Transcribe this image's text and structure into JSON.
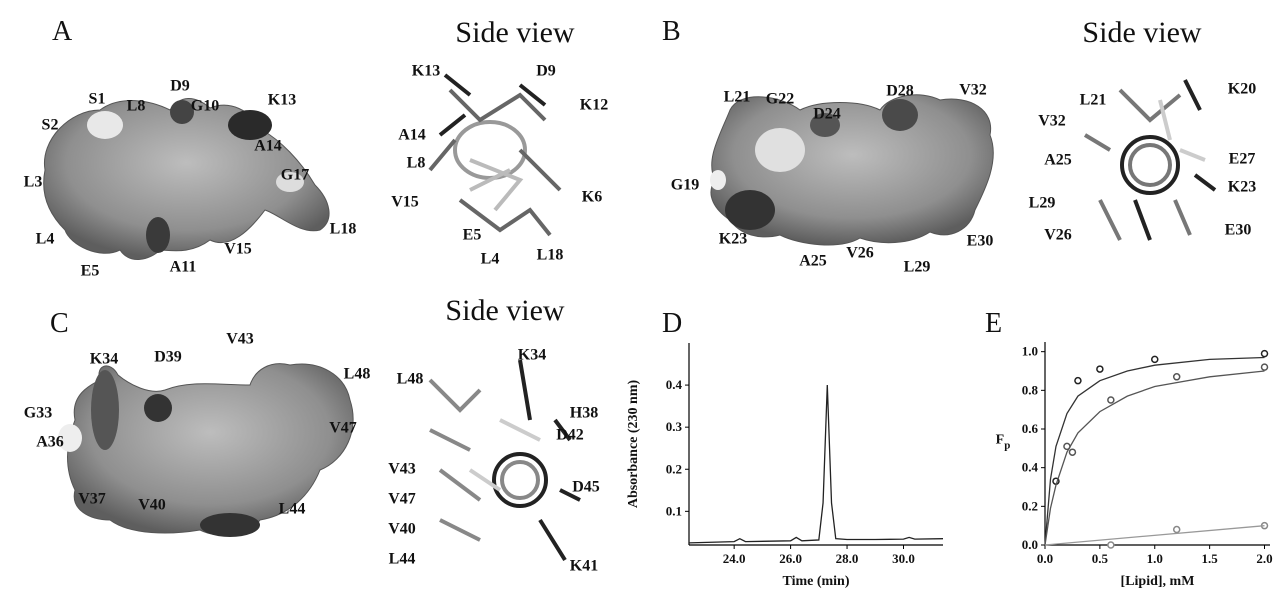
{
  "panels": [
    {
      "letter": "A",
      "side_view": "Side view",
      "surface_labels": [
        "S1",
        "S2",
        "L8",
        "D9",
        "G10",
        "K13",
        "A14",
        "G17",
        "L3",
        "L4",
        "L18",
        "E5",
        "A11",
        "V15"
      ],
      "side_labels": [
        "K13",
        "D9",
        "K12",
        "A14",
        "L8",
        "V15",
        "K6",
        "E5",
        "L4",
        "L18"
      ]
    },
    {
      "letter": "B",
      "side_view": "Side view",
      "surface_labels": [
        "L21",
        "G22",
        "D24",
        "D28",
        "V32",
        "G19",
        "K23",
        "A25",
        "V26",
        "L29",
        "E30"
      ],
      "side_labels": [
        "L21",
        "K20",
        "V32",
        "E27",
        "A25",
        "K23",
        "L29",
        "V26",
        "E30"
      ]
    },
    {
      "letter": "C",
      "side_view": "Side view",
      "surface_labels": [
        "K34",
        "D39",
        "V43",
        "G33",
        "L48",
        "A36",
        "V47",
        "V37",
        "V40",
        "L44"
      ],
      "side_labels": [
        "K34",
        "L48",
        "H38",
        "D42",
        "V43",
        "V47",
        "D45",
        "V40",
        "L44",
        "K41"
      ]
    }
  ],
  "panel_letters": [
    "D",
    "E"
  ],
  "chart_data": [
    {
      "type": "line",
      "x_label": "Time (min)",
      "y_label": "Absorbance (230 nm)",
      "xlim": [
        22.4,
        31.4
      ],
      "ylim": [
        0.02,
        0.5
      ],
      "xticks": [
        {
          "value": 24,
          "label": "24.0"
        },
        {
          "value": 26,
          "label": "26.0"
        },
        {
          "value": 28,
          "label": "28.0"
        },
        {
          "value": 30,
          "label": "30.0"
        }
      ],
      "yticks": [
        0.1,
        0.2,
        0.3,
        0.4
      ],
      "series": [
        {
          "color": "#222",
          "x": [
            22.4,
            24.0,
            24.2,
            24.4,
            26.0,
            26.2,
            26.4,
            27.0,
            27.15,
            27.3,
            27.45,
            27.6,
            28.0,
            29.0,
            30.0,
            30.2,
            30.4,
            31.4
          ],
          "values": [
            0.025,
            0.028,
            0.035,
            0.028,
            0.03,
            0.038,
            0.03,
            0.032,
            0.12,
            0.4,
            0.12,
            0.035,
            0.033,
            0.033,
            0.034,
            0.038,
            0.034,
            0.035
          ]
        }
      ]
    },
    {
      "type": "scatter",
      "x_label": "[Lipid], mM",
      "y_label": "F",
      "y_label_sub": "p",
      "xlim": [
        0,
        2.05
      ],
      "ylim": [
        0,
        1.05
      ],
      "xticks": [
        {
          "value": 0,
          "label": "0.0"
        },
        0.5,
        {
          "value": 1,
          "label": "1.0"
        },
        1.5,
        {
          "value": 2,
          "label": "2.0"
        }
      ],
      "yticks": [
        {
          "value": 0,
          "label": "0.0"
        },
        0.2,
        0.4,
        0.6,
        0.8,
        {
          "value": 1,
          "label": "1.0"
        }
      ],
      "series": [
        {
          "style": "points",
          "color": "#222",
          "x": [
            0.1,
            0.3,
            0.5,
            1.0,
            2.0
          ],
          "values": [
            0.33,
            0.85,
            0.91,
            0.96,
            0.99
          ]
        },
        {
          "style": "points",
          "color": "#555",
          "x": [
            0.2,
            0.25,
            0.6,
            1.2,
            2.0
          ],
          "values": [
            0.51,
            0.48,
            0.75,
            0.87,
            0.92
          ]
        },
        {
          "style": "points",
          "color": "#888",
          "x": [
            0.6,
            1.2,
            2.0
          ],
          "values": [
            0.0,
            0.08,
            0.1
          ]
        },
        {
          "style": "line",
          "color": "#333",
          "x": [
            0,
            0.05,
            0.1,
            0.2,
            0.3,
            0.5,
            0.75,
            1.0,
            1.5,
            2.0
          ],
          "values": [
            0,
            0.34,
            0.51,
            0.68,
            0.77,
            0.85,
            0.9,
            0.93,
            0.96,
            0.97
          ]
        },
        {
          "style": "line",
          "color": "#555",
          "x": [
            0,
            0.05,
            0.1,
            0.2,
            0.3,
            0.5,
            0.75,
            1.0,
            1.5,
            2.0
          ],
          "values": [
            0,
            0.19,
            0.31,
            0.48,
            0.58,
            0.69,
            0.77,
            0.82,
            0.87,
            0.9
          ]
        },
        {
          "style": "line",
          "color": "#999",
          "x": [
            0,
            2.0
          ],
          "values": [
            0,
            0.1
          ]
        }
      ]
    }
  ]
}
